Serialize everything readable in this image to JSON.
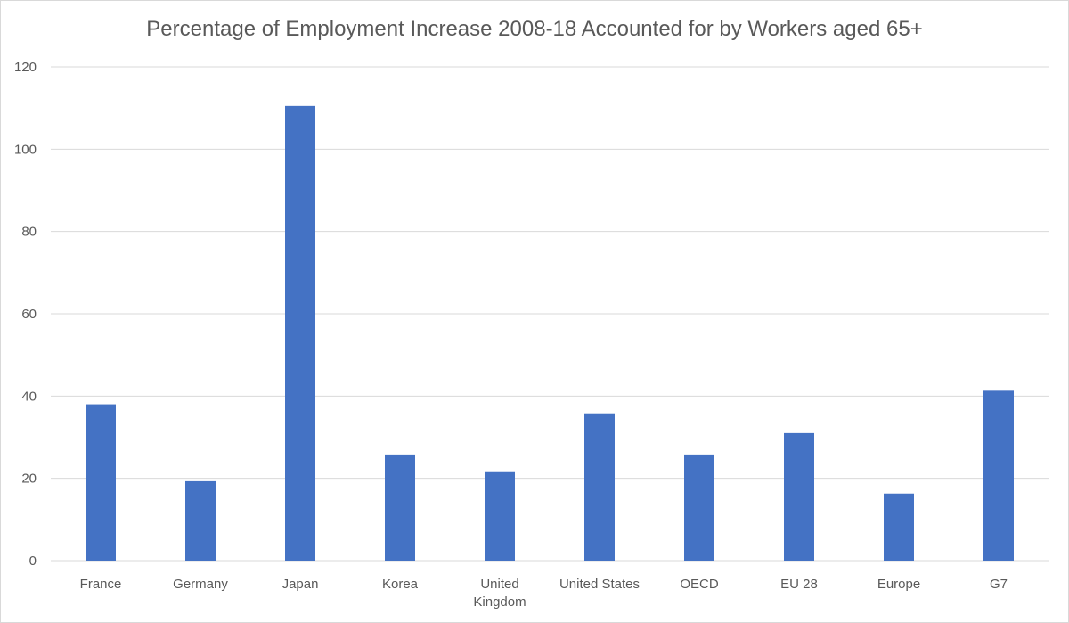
{
  "chart_data": {
    "type": "bar",
    "title": "Percentage of Employment Increase 2008-18 Accounted for by Workers aged 65+",
    "categories": [
      "France",
      "Germany",
      "Japan",
      "Korea",
      "United Kingdom",
      "United States",
      "OECD",
      "EU 28",
      "Europe",
      "G7"
    ],
    "values": [
      38,
      19.3,
      110.5,
      25.8,
      21.5,
      35.8,
      25.8,
      31,
      16.3,
      41.3
    ],
    "ylim": [
      0,
      120
    ],
    "yticks": [
      0,
      20,
      40,
      60,
      80,
      100,
      120
    ],
    "grid": true,
    "legend": "none",
    "bar_color": "#4472C4",
    "grid_color": "#d9d9d9"
  }
}
